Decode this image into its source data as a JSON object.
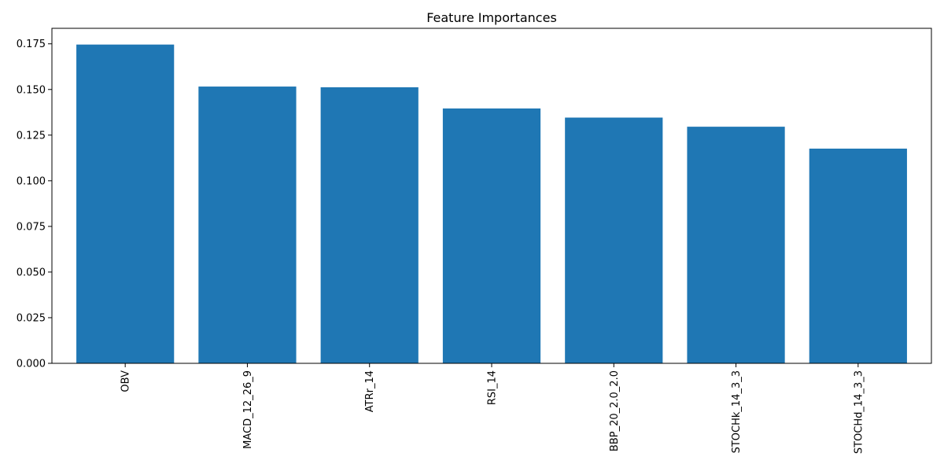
{
  "chart_data": {
    "type": "bar",
    "title": "Feature Importances",
    "xlabel": "",
    "ylabel": "",
    "categories": [
      "OBV",
      "MACD_12_26_9",
      "ATRr_14",
      "RSI_14",
      "BBP_20_2.0_2.0",
      "STOCHk_14_3_3",
      "STOCHd_14_3_3"
    ],
    "values": [
      0.1746,
      0.1516,
      0.1512,
      0.1396,
      0.1346,
      0.1296,
      0.1176
    ],
    "ylim": [
      0,
      0.1835
    ],
    "yticks": [
      "0.000",
      "0.025",
      "0.050",
      "0.075",
      "0.100",
      "0.125",
      "0.150",
      "0.175"
    ],
    "ytick_values": [
      0,
      0.025,
      0.05,
      0.075,
      0.1,
      0.125,
      0.15,
      0.175
    ],
    "bar_color": "#1f77b4",
    "grid": false,
    "legend": "none"
  }
}
